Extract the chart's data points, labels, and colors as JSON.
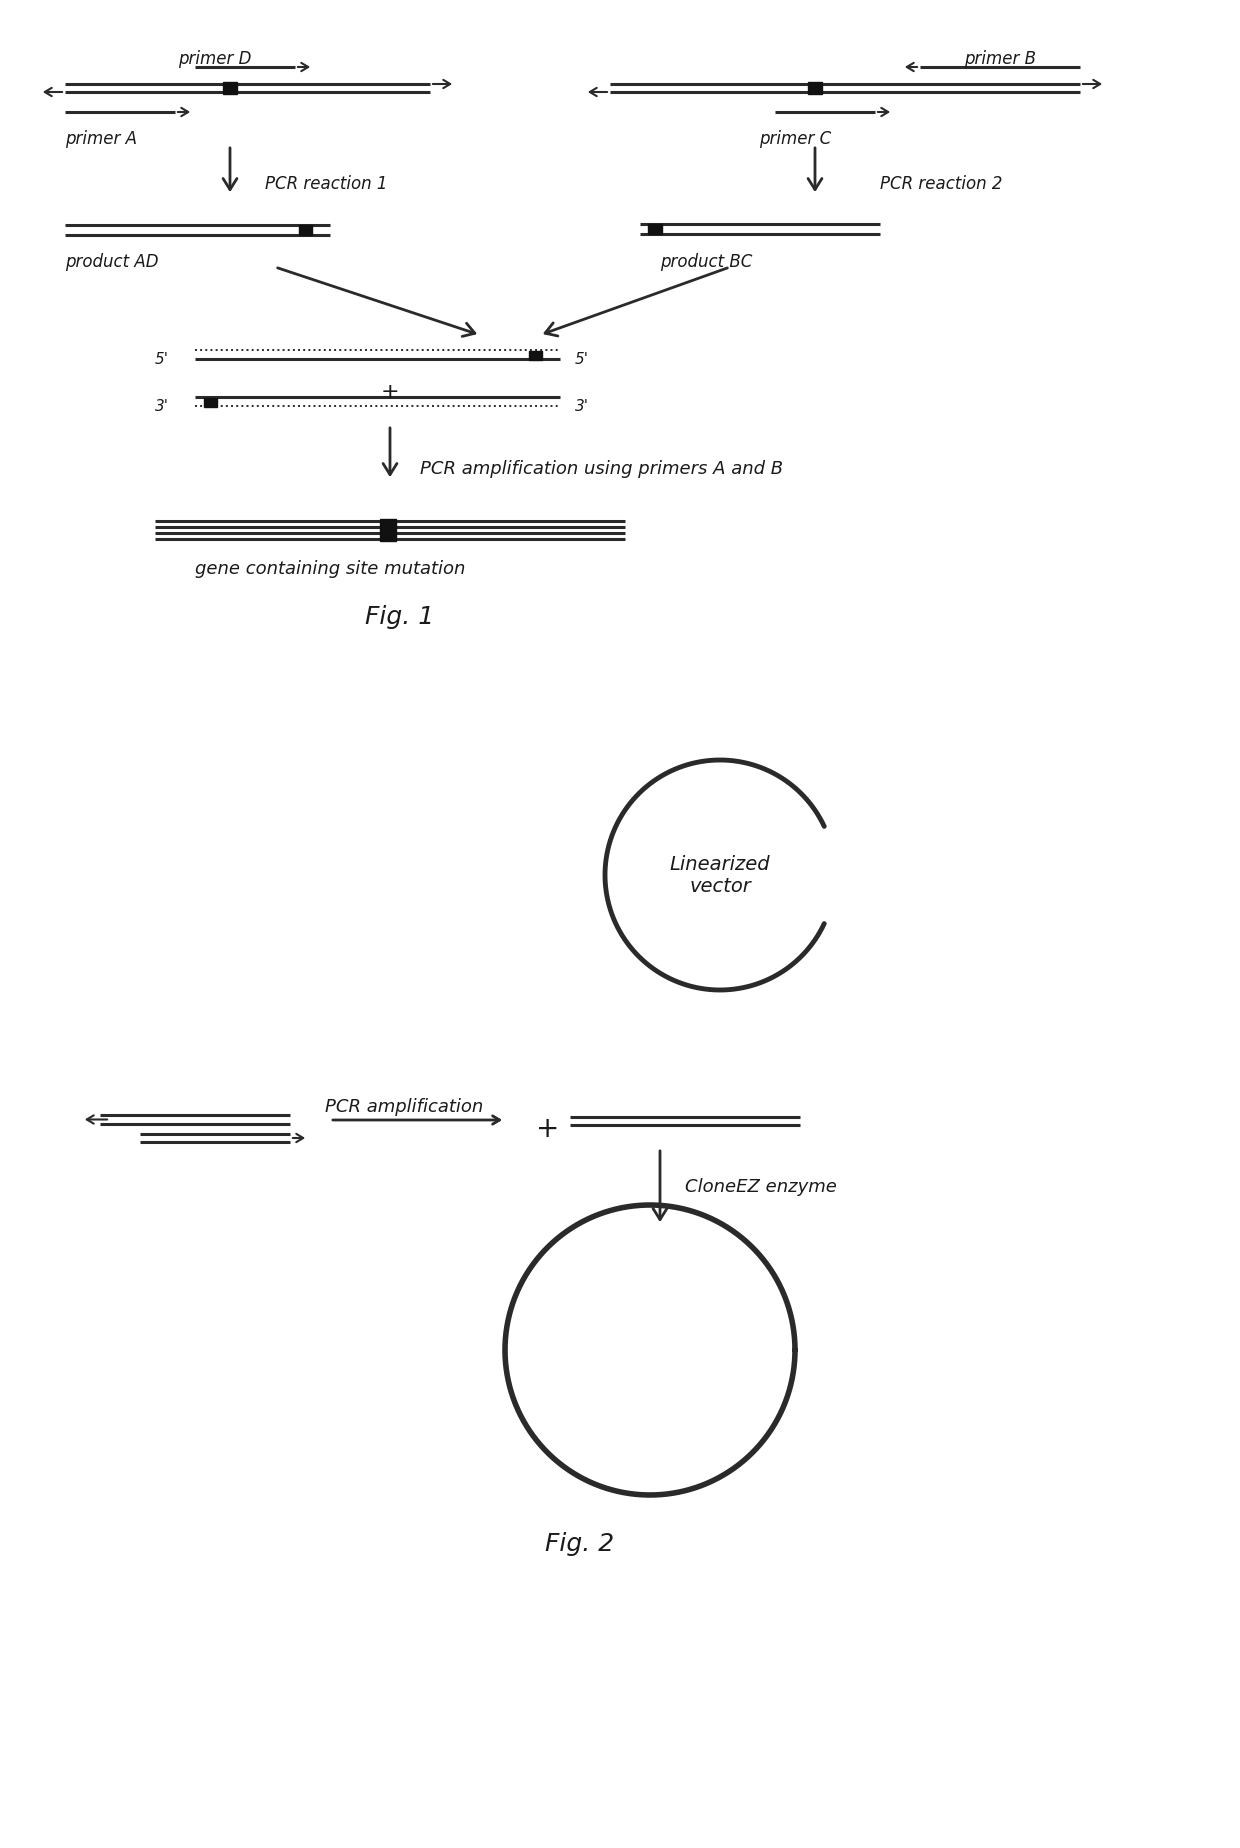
{
  "bg_color": "#ffffff",
  "text_color": "#1a1a1a",
  "line_color": "#2a2a2a",
  "lw_thick": 3.0,
  "lw_med": 2.2,
  "lw_thin": 1.4,
  "mutation_color": "#111111",
  "fig1_label": "Fig. 1",
  "fig2_label": "Fig. 2",
  "label_primerD": "primer D",
  "label_primerA": "primer A",
  "label_primerB": "primer B",
  "label_primerC": "primer C",
  "label_pcr1": "PCR reaction 1",
  "label_pcr2": "PCR reaction 2",
  "label_prodAD": "product AD",
  "label_prodBC": "product BC",
  "label_pcr_ab": "PCR amplification using primers A and B",
  "label_gene": "gene containing site mutation",
  "label_lin": "Linearized\nvector",
  "label_pcr_amp": "PCR amplification",
  "label_cloneez": "CloneEZ enzyme",
  "label_5p_left": "5'",
  "label_5p_right": "5'",
  "label_3p_left": "3'",
  "label_3p_right": "3'"
}
